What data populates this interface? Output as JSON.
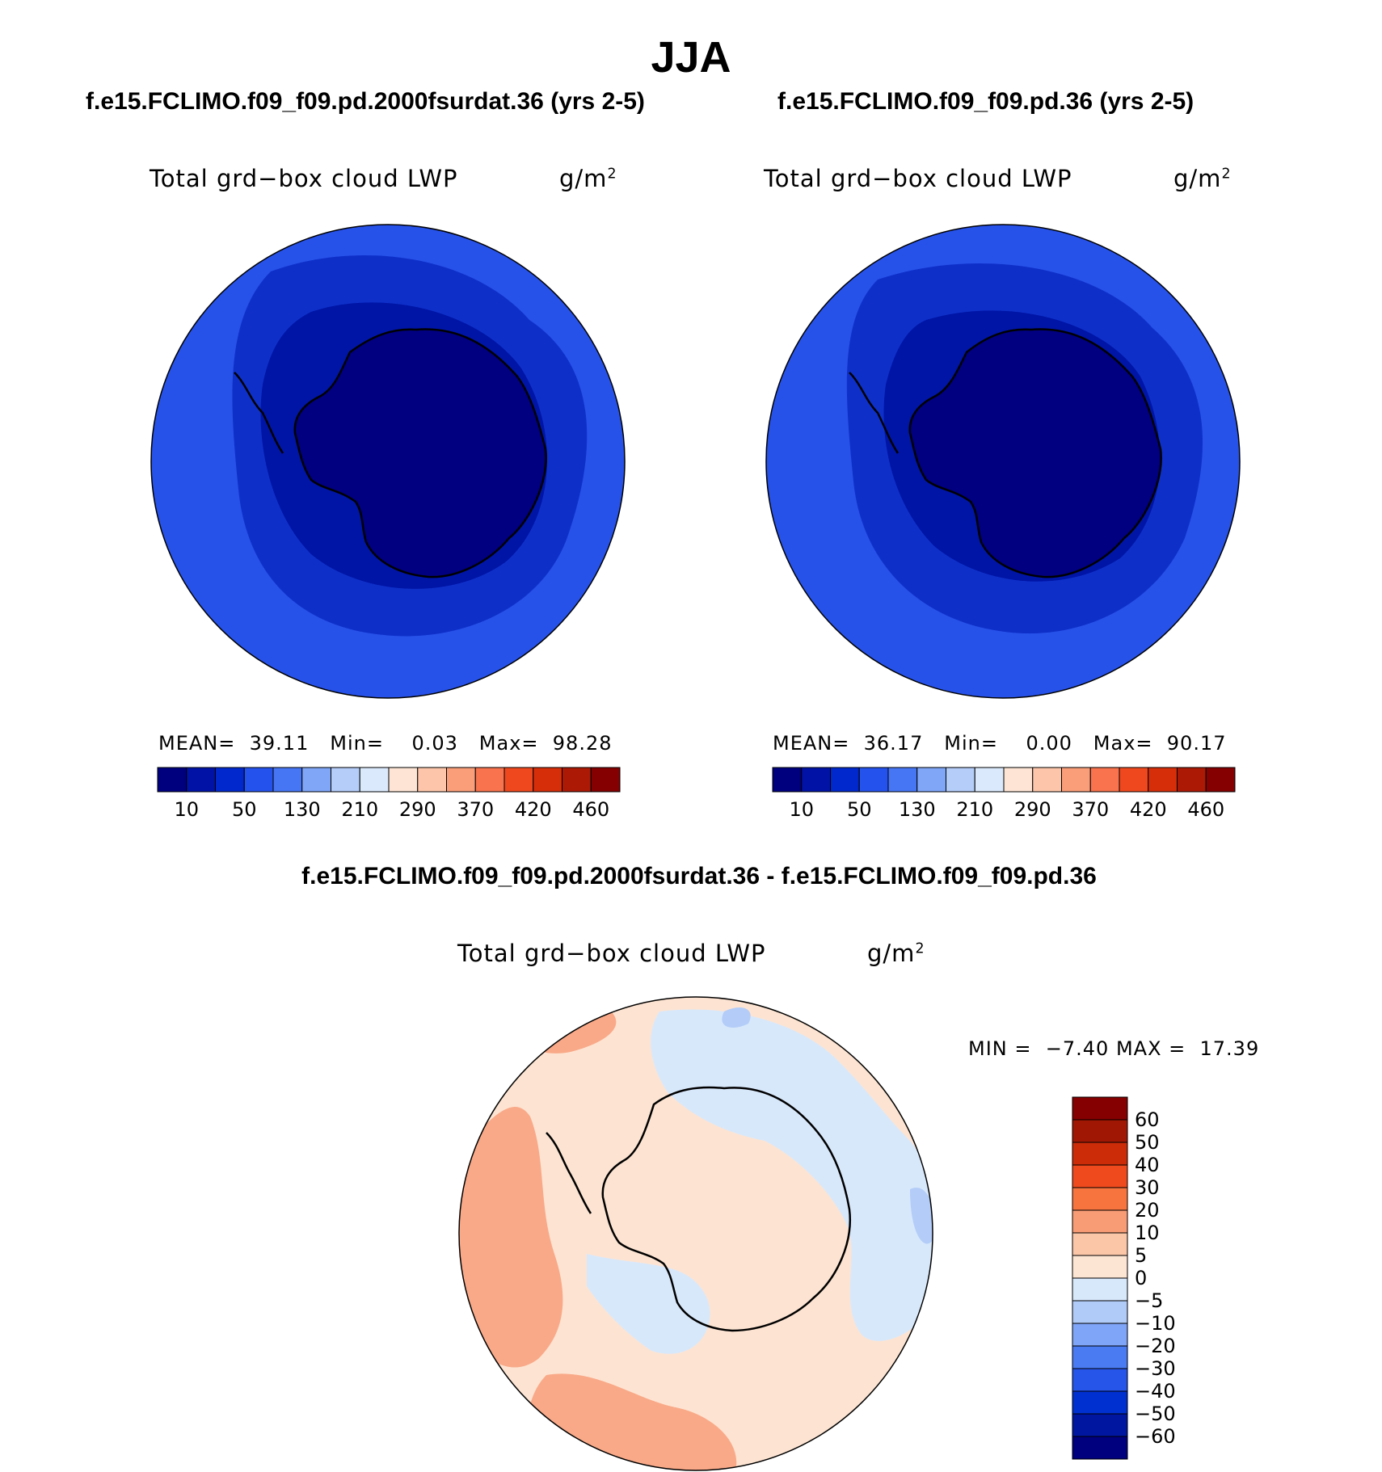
{
  "season": "JJA",
  "panels": [
    {
      "case": "f.e15.FCLIMO.f09_f09.pd.2000fsurdat.36 (yrs 2-5)",
      "variable": "Total grd−box cloud LWP",
      "units_base": "g/m",
      "units_exp": "2",
      "mean_label": "MEAN=",
      "mean": "39.11",
      "min_label": "Min=",
      "min": "0.03",
      "max_label": "Max=",
      "max": "98.28"
    },
    {
      "case": "f.e15.FCLIMO.f09_f09.pd.36 (yrs 2-5)",
      "variable": "Total grd−box cloud LWP",
      "units_base": "g/m",
      "units_exp": "2",
      "mean_label": "MEAN=",
      "mean": "36.17",
      "min_label": "Min=",
      "min": "0.00",
      "max_label": "Max=",
      "max": "90.17"
    }
  ],
  "diff_panel": {
    "title": "f.e15.FCLIMO.f09_f09.pd.2000fsurdat.36 - f.e15.FCLIMO.f09_f09.pd.36",
    "variable": "Total grd−box cloud LWP",
    "units_base": "g/m",
    "units_exp": "2",
    "min_label": "MIN =",
    "min": "−7.40",
    "max_label": "MAX =",
    "max": "17.39"
  },
  "horizontal_colorbar": {
    "colors": [
      "#00007f",
      "#0013a6",
      "#0028cc",
      "#2452ec",
      "#4776f4",
      "#80a6f8",
      "#b4cdf9",
      "#dae9fb",
      "#fde4d4",
      "#fdc6aa",
      "#fa9e7a",
      "#f8734e",
      "#f0481e",
      "#d52e09",
      "#ac1905",
      "#850000"
    ],
    "tick_labels": [
      "10",
      "50",
      "130",
      "210",
      "290",
      "370",
      "420",
      "460"
    ]
  },
  "vertical_colorbar": {
    "colors_bottom_to_top": [
      "#00007f",
      "#0015a0",
      "#0030d0",
      "#2655ea",
      "#4a7bf3",
      "#7fa5f8",
      "#b1cbf9",
      "#d7e8fb",
      "#fde5d3",
      "#fbc5a8",
      "#f89c75",
      "#f7743f",
      "#ef4a1d",
      "#cd2c09",
      "#a01804",
      "#850000"
    ],
    "tick_labels_top_to_bottom": [
      "60",
      "50",
      "40",
      "30",
      "20",
      "10",
      "5",
      "0",
      "−5",
      "−10",
      "−20",
      "−30",
      "−40",
      "−50",
      "−60"
    ]
  },
  "map_colors": {
    "lwp_outer": "#2752ea",
    "lwp_mid": "#0e30c9",
    "lwp_inner": "#0015a6",
    "lwp_core": "#000080",
    "diff_pos_small": "#fde4d2",
    "diff_pos_med": "#f9a988",
    "diff_neg_small": "#d8e8fb",
    "diff_neg_med": "#b3cdf8"
  }
}
